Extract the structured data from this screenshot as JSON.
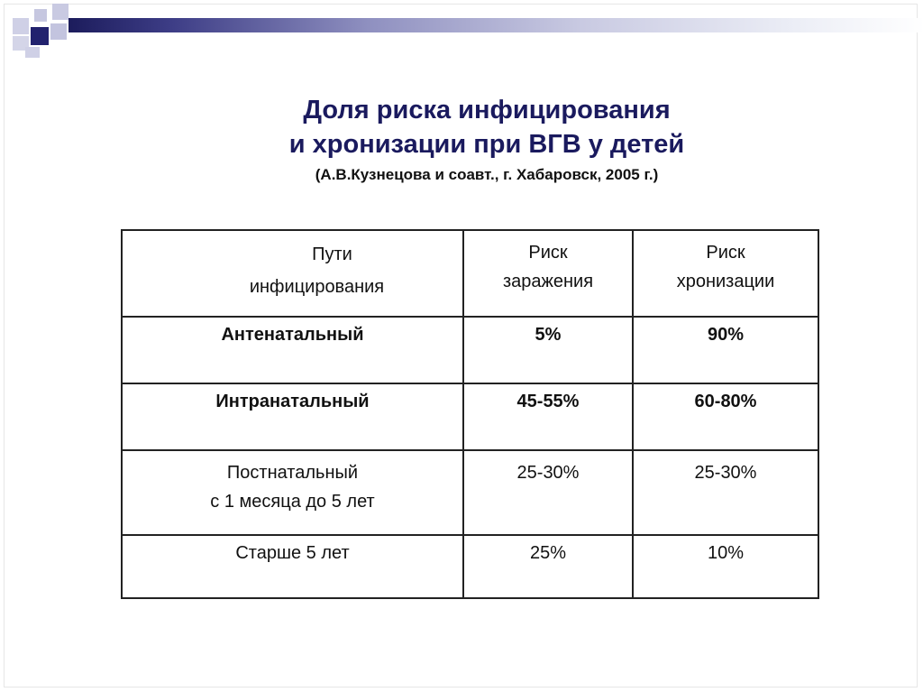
{
  "title": {
    "line1": "Доля риска инфицирования",
    "line2": "и хронизации при ВГВ у детей",
    "source": "(А.В.Кузнецова и соавт., г. Хабаровск, 2005 г.)"
  },
  "table": {
    "headers": [
      [
        "Пути",
        "инфицирования"
      ],
      [
        "Риск",
        "заражения"
      ],
      [
        "Риск",
        "хронизации"
      ]
    ],
    "rows": [
      {
        "route": [
          "Антенатальный"
        ],
        "infection": "5%",
        "chronic": "90%",
        "highlight": true
      },
      {
        "route": [
          "Интранатальный"
        ],
        "infection": "45-55%",
        "chronic": "60-80%",
        "highlight": true
      },
      {
        "route": [
          "Постнатальный",
          "с 1 месяца до 5 лет"
        ],
        "infection": "25-30%",
        "chronic": "25-30%",
        "highlight": false
      },
      {
        "route": [
          "Старше 5 лет"
        ],
        "infection": "25%",
        "chronic": "10%",
        "highlight": false
      }
    ]
  },
  "colors": {
    "title": "#1a1a5e",
    "highlight": "#b0141c",
    "accent": "#22226e"
  }
}
